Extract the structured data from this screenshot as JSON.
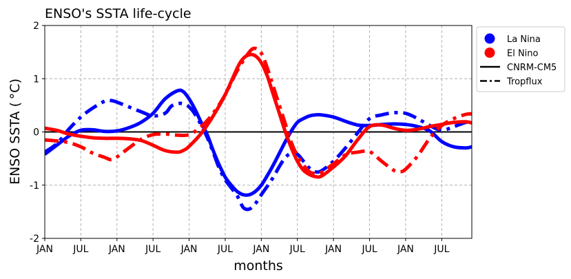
{
  "chart_data": {
    "type": "line",
    "title": "ENSO's SSTA life-cycle",
    "xlabel": "months",
    "ylabel": "ENSO SSTA ($^\\circ$C)",
    "ylabel_display": "ENSO SSTA ( °C)",
    "x_ticks": [
      {
        "x": 0,
        "label": "JAN"
      },
      {
        "x": 6,
        "label": "JUL"
      },
      {
        "x": 12,
        "label": "JAN"
      },
      {
        "x": 18,
        "label": "JUL"
      },
      {
        "x": 24,
        "label": "JAN"
      },
      {
        "x": 30,
        "label": "JUL"
      },
      {
        "x": 36,
        "label": "JAN"
      },
      {
        "x": 42,
        "label": "JUL"
      },
      {
        "x": 48,
        "label": "JAN"
      },
      {
        "x": 54,
        "label": "JUL"
      },
      {
        "x": 60,
        "label": "JAN"
      },
      {
        "x": 66,
        "label": "JUL"
      }
    ],
    "y_ticks": [
      {
        "y": -2,
        "label": "-2"
      },
      {
        "y": -1,
        "label": "-1"
      },
      {
        "y": 0,
        "label": "0"
      },
      {
        "y": 1,
        "label": "1"
      },
      {
        "y": 2,
        "label": "2"
      }
    ],
    "xlim": [
      0,
      71
    ],
    "ylim": [
      -2,
      2
    ],
    "grid": true,
    "legend_position": "outside-right-top",
    "legend": [
      {
        "label": "La Nina",
        "kind": "marker",
        "color": "#0000ff"
      },
      {
        "label": "El Nino",
        "kind": "marker",
        "color": "#ff0000"
      },
      {
        "label": "CNRM-CM5",
        "kind": "solid",
        "color": "#000000"
      },
      {
        "label": "Tropflux",
        "kind": "dashdot",
        "color": "#000000"
      }
    ],
    "zero_line": {
      "y": 0,
      "color": "#000000"
    },
    "series": [
      {
        "group": "La Nina",
        "source": "CNRM-CM5",
        "color": "#0000ff",
        "style": "solid",
        "points": [
          [
            0,
            -0.42
          ],
          [
            2,
            -0.25
          ],
          [
            4,
            -0.08
          ],
          [
            6,
            0.03
          ],
          [
            8,
            0.04
          ],
          [
            10,
            0.01
          ],
          [
            12,
            0.02
          ],
          [
            14,
            0.08
          ],
          [
            16,
            0.18
          ],
          [
            18,
            0.35
          ],
          [
            20,
            0.62
          ],
          [
            22,
            0.77
          ],
          [
            23,
            0.76
          ],
          [
            24,
            0.62
          ],
          [
            25,
            0.42
          ],
          [
            26,
            0.18
          ],
          [
            27,
            -0.05
          ],
          [
            28,
            -0.35
          ],
          [
            29,
            -0.62
          ],
          [
            30,
            -0.85
          ],
          [
            31,
            -1.0
          ],
          [
            32,
            -1.12
          ],
          [
            33,
            -1.18
          ],
          [
            34,
            -1.18
          ],
          [
            35,
            -1.12
          ],
          [
            36,
            -1.0
          ],
          [
            37,
            -0.82
          ],
          [
            38,
            -0.62
          ],
          [
            39,
            -0.4
          ],
          [
            40,
            -0.18
          ],
          [
            41,
            0.02
          ],
          [
            42,
            0.18
          ],
          [
            43,
            0.25
          ],
          [
            44,
            0.3
          ],
          [
            45,
            0.32
          ],
          [
            46,
            0.32
          ],
          [
            48,
            0.28
          ],
          [
            50,
            0.2
          ],
          [
            52,
            0.13
          ],
          [
            54,
            0.12
          ],
          [
            56,
            0.14
          ],
          [
            58,
            0.15
          ],
          [
            60,
            0.14
          ],
          [
            62,
            0.1
          ],
          [
            64,
            0.02
          ],
          [
            66,
            -0.18
          ],
          [
            68,
            -0.28
          ],
          [
            70,
            -0.3
          ],
          [
            71,
            -0.28
          ]
        ]
      },
      {
        "group": "La Nina",
        "source": "Tropflux",
        "color": "#0000ff",
        "style": "dashdot",
        "points": [
          [
            0,
            -0.38
          ],
          [
            2,
            -0.22
          ],
          [
            4,
            0.05
          ],
          [
            6,
            0.28
          ],
          [
            8,
            0.45
          ],
          [
            10,
            0.58
          ],
          [
            11,
            0.59
          ],
          [
            12,
            0.56
          ],
          [
            14,
            0.47
          ],
          [
            16,
            0.38
          ],
          [
            18,
            0.3
          ],
          [
            20,
            0.35
          ],
          [
            21,
            0.48
          ],
          [
            22,
            0.53
          ],
          [
            23,
            0.53
          ],
          [
            24,
            0.47
          ],
          [
            25,
            0.33
          ],
          [
            26,
            0.13
          ],
          [
            27,
            -0.1
          ],
          [
            28,
            -0.38
          ],
          [
            29,
            -0.68
          ],
          [
            30,
            -0.9
          ],
          [
            31,
            -1.05
          ],
          [
            32,
            -1.2
          ],
          [
            33,
            -1.42
          ],
          [
            34,
            -1.45
          ],
          [
            35,
            -1.35
          ],
          [
            36,
            -1.18
          ],
          [
            37,
            -1.02
          ],
          [
            38,
            -0.85
          ],
          [
            39,
            -0.65
          ],
          [
            40,
            -0.48
          ],
          [
            41,
            -0.4
          ],
          [
            42,
            -0.42
          ],
          [
            43,
            -0.55
          ],
          [
            44,
            -0.68
          ],
          [
            45,
            -0.75
          ],
          [
            46,
            -0.73
          ],
          [
            48,
            -0.55
          ],
          [
            50,
            -0.3
          ],
          [
            52,
            -0.02
          ],
          [
            54,
            0.25
          ],
          [
            56,
            0.32
          ],
          [
            58,
            0.36
          ],
          [
            60,
            0.35
          ],
          [
            62,
            0.25
          ],
          [
            64,
            0.12
          ],
          [
            66,
            0.03
          ],
          [
            68,
            0.1
          ],
          [
            70,
            0.18
          ],
          [
            71,
            0.2
          ]
        ]
      },
      {
        "group": "El Nino",
        "source": "CNRM-CM5",
        "color": "#ff0000",
        "style": "solid",
        "points": [
          [
            0,
            0.07
          ],
          [
            2,
            0.03
          ],
          [
            4,
            -0.04
          ],
          [
            6,
            -0.08
          ],
          [
            8,
            -0.11
          ],
          [
            10,
            -0.12
          ],
          [
            12,
            -0.12
          ],
          [
            14,
            -0.13
          ],
          [
            16,
            -0.16
          ],
          [
            18,
            -0.25
          ],
          [
            20,
            -0.35
          ],
          [
            22,
            -0.38
          ],
          [
            23,
            -0.35
          ],
          [
            24,
            -0.27
          ],
          [
            26,
            -0.03
          ],
          [
            28,
            0.3
          ],
          [
            30,
            0.7
          ],
          [
            32,
            1.2
          ],
          [
            33,
            1.38
          ],
          [
            34,
            1.45
          ],
          [
            35,
            1.43
          ],
          [
            36,
            1.3
          ],
          [
            37,
            1.05
          ],
          [
            38,
            0.7
          ],
          [
            39,
            0.35
          ],
          [
            40,
            0.0
          ],
          [
            41,
            -0.3
          ],
          [
            42,
            -0.55
          ],
          [
            43,
            -0.72
          ],
          [
            44,
            -0.8
          ],
          [
            45,
            -0.84
          ],
          [
            46,
            -0.83
          ],
          [
            48,
            -0.66
          ],
          [
            50,
            -0.45
          ],
          [
            52,
            -0.15
          ],
          [
            54,
            0.1
          ],
          [
            56,
            0.13
          ],
          [
            58,
            0.07
          ],
          [
            60,
            0.03
          ],
          [
            62,
            0.05
          ],
          [
            64,
            0.1
          ],
          [
            66,
            0.14
          ],
          [
            68,
            0.18
          ],
          [
            70,
            0.19
          ],
          [
            71,
            0.17
          ]
        ]
      },
      {
        "group": "El Nino",
        "source": "Tropflux",
        "color": "#ff0000",
        "style": "dashdot",
        "points": [
          [
            0,
            -0.15
          ],
          [
            2,
            -0.17
          ],
          [
            4,
            -0.2
          ],
          [
            6,
            -0.28
          ],
          [
            8,
            -0.4
          ],
          [
            10,
            -0.48
          ],
          [
            11,
            -0.52
          ],
          [
            12,
            -0.47
          ],
          [
            14,
            -0.3
          ],
          [
            16,
            -0.14
          ],
          [
            18,
            -0.05
          ],
          [
            20,
            -0.04
          ],
          [
            22,
            -0.06
          ],
          [
            24,
            -0.05
          ],
          [
            26,
            0.1
          ],
          [
            28,
            0.35
          ],
          [
            30,
            0.7
          ],
          [
            32,
            1.15
          ],
          [
            34,
            1.5
          ],
          [
            35,
            1.57
          ],
          [
            36,
            1.48
          ],
          [
            37,
            1.2
          ],
          [
            38,
            0.85
          ],
          [
            39,
            0.5
          ],
          [
            40,
            0.15
          ],
          [
            41,
            -0.2
          ],
          [
            42,
            -0.45
          ],
          [
            43,
            -0.62
          ],
          [
            44,
            -0.75
          ],
          [
            45,
            -0.78
          ],
          [
            46,
            -0.76
          ],
          [
            48,
            -0.6
          ],
          [
            50,
            -0.43
          ],
          [
            52,
            -0.38
          ],
          [
            54,
            -0.37
          ],
          [
            56,
            -0.55
          ],
          [
            58,
            -0.72
          ],
          [
            59,
            -0.75
          ],
          [
            60,
            -0.7
          ],
          [
            62,
            -0.45
          ],
          [
            64,
            -0.12
          ],
          [
            66,
            0.12
          ],
          [
            68,
            0.25
          ],
          [
            70,
            0.33
          ],
          [
            71,
            0.34
          ]
        ]
      }
    ]
  }
}
